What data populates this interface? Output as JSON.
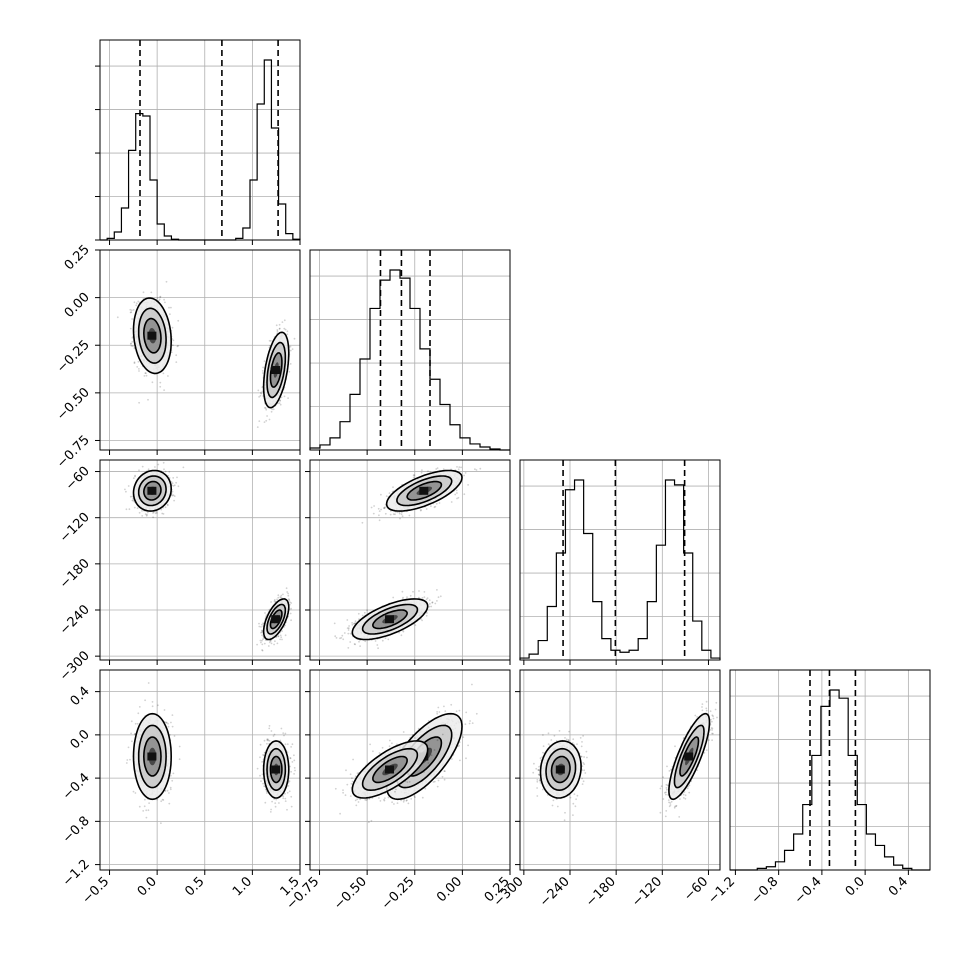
{
  "chart_data": {
    "type": "corner",
    "description": "Corner plot of 4 parameters: 1D marginal histograms on the diagonal with dashed quantile lines, 2D density/contour panels below",
    "grid": true,
    "parameters": [
      {
        "ticks": [
          -0.5,
          0.0,
          0.5,
          1.0,
          1.5
        ],
        "tick_labels": [
          "−0.5",
          "0.0",
          "0.5",
          "1.0",
          "1.5"
        ],
        "range": [
          -0.6,
          1.5
        ],
        "quantiles": [
          -0.18,
          0.68,
          1.27
        ],
        "histogram": [
          0,
          2,
          10,
          40,
          112,
          158,
          155,
          75,
          20,
          5,
          1,
          0,
          0,
          0,
          0,
          0,
          0,
          0,
          0,
          2,
          15,
          75,
          170,
          225,
          140,
          45,
          8,
          1
        ]
      },
      {
        "ticks": [
          -0.75,
          -0.5,
          -0.25,
          0.0,
          0.25
        ],
        "tick_labels": [
          "−0.75",
          "−0.50",
          "−0.25",
          "0.00",
          "0.25"
        ],
        "range": [
          -0.8,
          0.25
        ],
        "quantiles": [
          -0.43,
          -0.32,
          -0.17
        ],
        "histogram": [
          2,
          5,
          12,
          28,
          55,
          90,
          140,
          168,
          178,
          170,
          140,
          100,
          70,
          45,
          25,
          12,
          6,
          3,
          1,
          0
        ]
      },
      {
        "ticks": [
          -300,
          -240,
          -180,
          -120,
          -60
        ],
        "tick_labels": [
          "−300",
          "−240",
          "−180",
          "−120",
          "−60"
        ],
        "range": [
          -305,
          -45
        ],
        "quantiles": [
          -249,
          -181,
          -91
        ],
        "histogram": [
          2,
          6,
          20,
          55,
          110,
          175,
          185,
          130,
          60,
          22,
          10,
          8,
          10,
          22,
          60,
          118,
          185,
          180,
          110,
          40,
          10,
          2
        ]
      },
      {
        "ticks": [
          -1.2,
          -0.8,
          -0.4,
          0.0,
          0.4
        ],
        "tick_labels": [
          "−1.2",
          "−0.8",
          "−0.4",
          "0.0",
          "0.4"
        ],
        "range": [
          -1.25,
          0.6
        ],
        "quantiles": [
          -0.51,
          -0.33,
          -0.09
        ],
        "histogram": [
          0,
          0,
          0,
          1,
          2,
          5,
          12,
          22,
          40,
          70,
          100,
          110,
          105,
          70,
          40,
          22,
          15,
          8,
          3,
          1,
          0,
          0
        ]
      }
    ],
    "clusters": [
      {
        "weight": 0.5,
        "means": [
          -0.05,
          -0.2,
          -85,
          -0.2
        ],
        "sds": [
          0.09,
          0.09,
          12,
          0.18
        ]
      },
      {
        "weight": 0.5,
        "means": [
          1.25,
          -0.38,
          -252,
          -0.32
        ],
        "sds": [
          0.06,
          0.09,
          12,
          0.12
        ]
      }
    ]
  }
}
